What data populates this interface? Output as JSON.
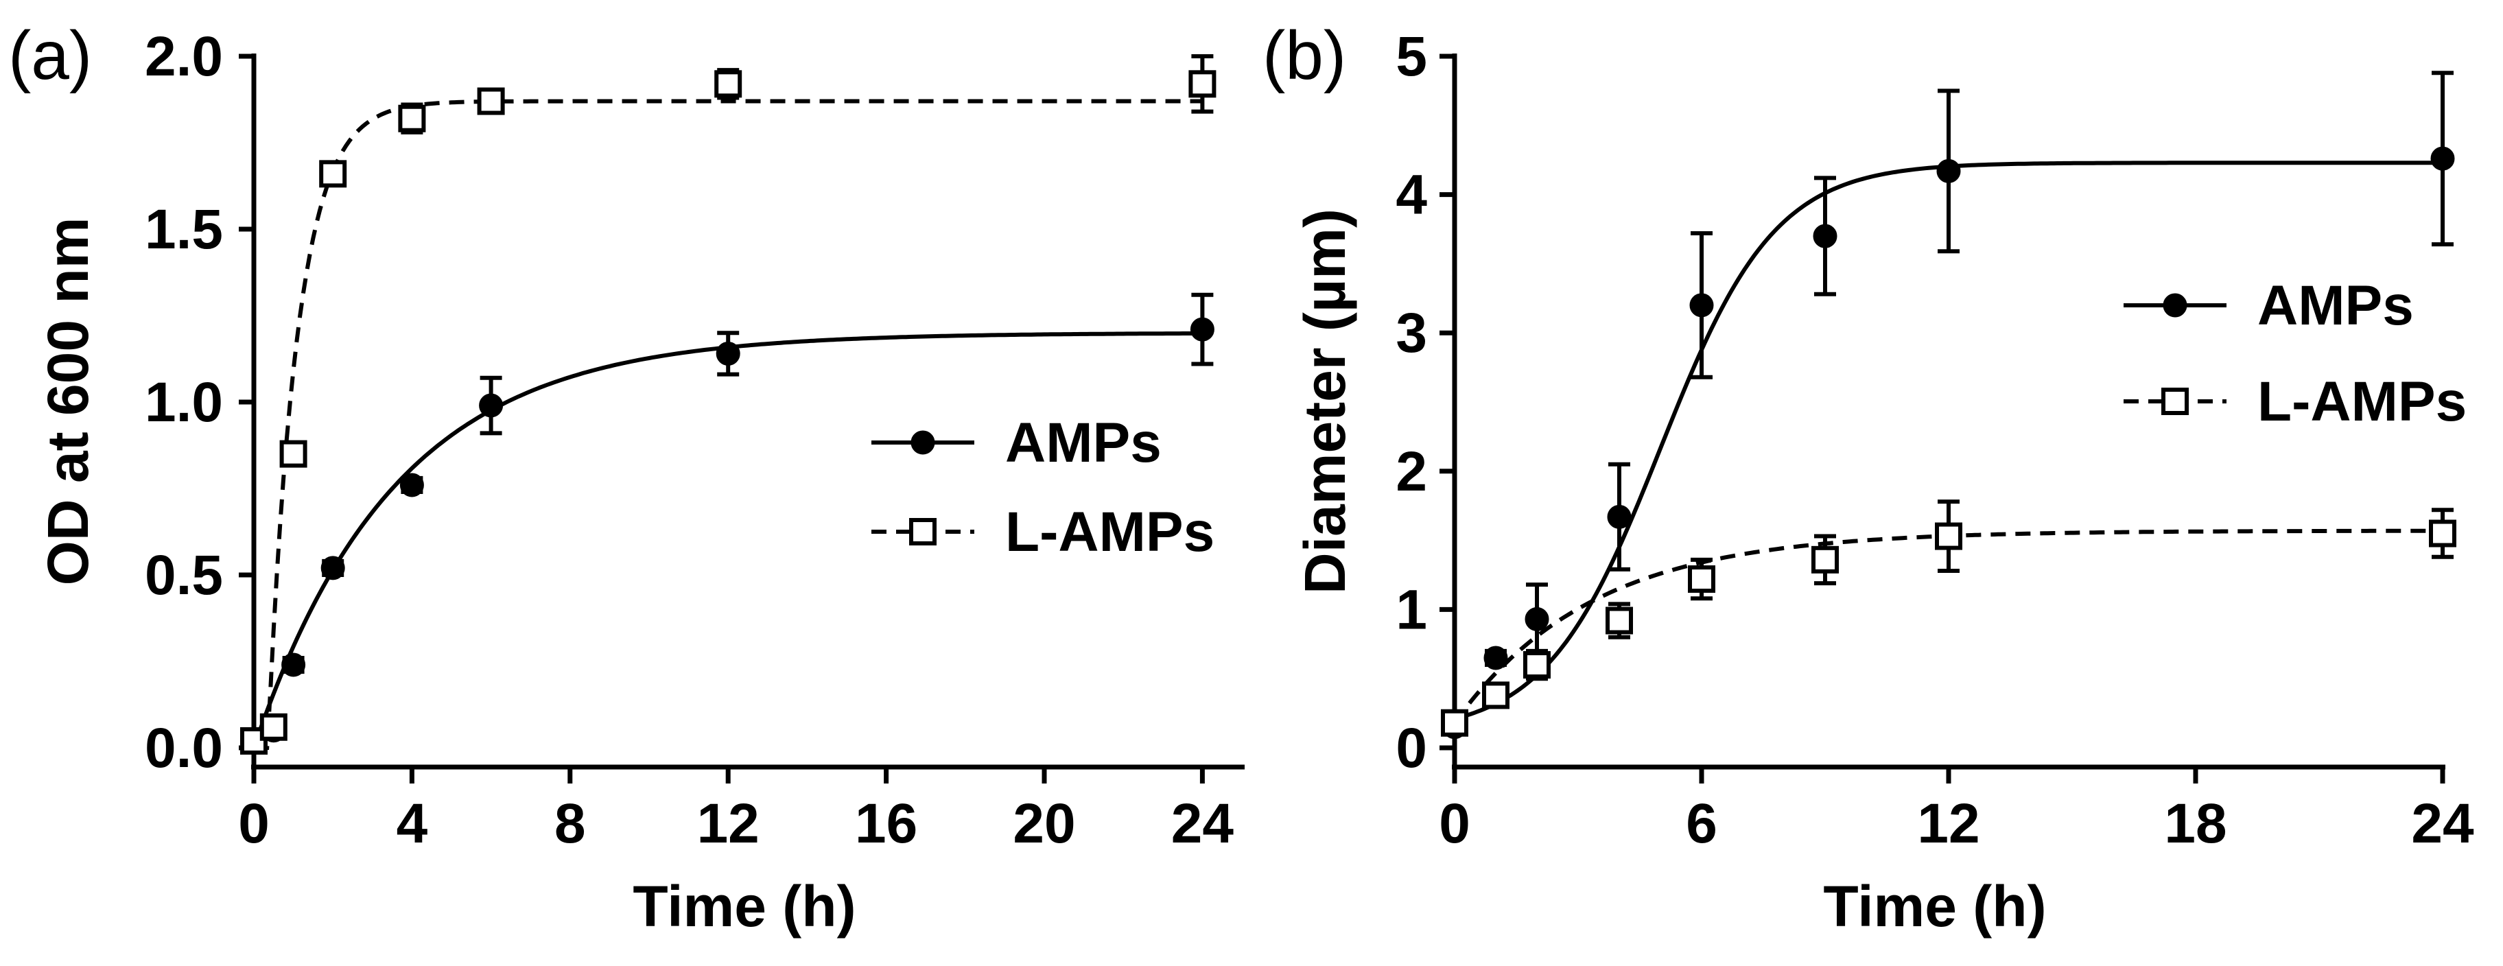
{
  "chart_data": [
    {
      "type": "scatter",
      "panel_label": "(a)",
      "xlabel": "Time (h)",
      "ylabel": "OD at 600 nm",
      "xlim": [
        0,
        25
      ],
      "ylim": [
        0,
        2.0
      ],
      "xticks": [
        0,
        4,
        8,
        12,
        16,
        20,
        24
      ],
      "yticks": [
        0.0,
        0.5,
        1.0,
        1.5,
        2.0
      ],
      "ytick_labels": [
        "0.0",
        "0.5",
        "1.0",
        "1.5",
        "2.0"
      ],
      "legend_position": "center-right",
      "series": [
        {
          "name": "AMPs",
          "marker": "filled-circle",
          "line": "solid",
          "x": [
            0,
            0.5,
            1,
            2,
            4,
            6,
            12,
            24
          ],
          "y": [
            0.02,
            0.05,
            0.24,
            0.52,
            0.76,
            0.99,
            1.14,
            1.21
          ],
          "err": [
            0.01,
            0.01,
            0.02,
            0.02,
            0.02,
            0.08,
            0.06,
            0.1
          ],
          "fit": {
            "model": "saturating-exponential",
            "ymax": 1.2,
            "k": 0.28,
            "x0": 0
          }
        },
        {
          "name": "L-AMPs",
          "marker": "open-square",
          "line": "dashed",
          "x": [
            0,
            0.5,
            1,
            2,
            4,
            6,
            12,
            24
          ],
          "y": [
            0.02,
            0.06,
            0.85,
            1.66,
            1.82,
            1.87,
            1.92,
            1.92
          ],
          "err": [
            0.01,
            0.02,
            0.03,
            0.03,
            0.04,
            0.02,
            0.04,
            0.08
          ],
          "fit": {
            "model": "saturating-exponential",
            "ymax": 1.87,
            "k": 1.35,
            "x0": 0.35
          }
        }
      ]
    },
    {
      "type": "scatter",
      "panel_label": "(b)",
      "xlabel": "Time (h)",
      "ylabel": "Diameter (µm)",
      "xlim": [
        0,
        24
      ],
      "ylim": [
        0,
        5
      ],
      "xticks": [
        0,
        6,
        12,
        18,
        24
      ],
      "yticks": [
        0,
        1,
        2,
        3,
        4,
        5
      ],
      "ytick_labels": [
        "0",
        "1",
        "2",
        "3",
        "4",
        "5"
      ],
      "legend_position": "center-right",
      "series": [
        {
          "name": "AMPs",
          "marker": "filled-circle",
          "line": "solid",
          "x": [
            0,
            1,
            2,
            4,
            6,
            9,
            12,
            24
          ],
          "y": [
            0.15,
            0.65,
            0.93,
            1.67,
            3.2,
            3.7,
            4.17,
            4.26
          ],
          "err": [
            0.05,
            0.05,
            0.25,
            0.38,
            0.52,
            0.42,
            0.58,
            0.62
          ],
          "fit": {
            "model": "logistic",
            "ymin": 0.1,
            "ymax": 4.23,
            "xmid": 5.0,
            "slope": 0.72
          }
        },
        {
          "name": "L-AMPs",
          "marker": "open-square",
          "line": "dashed",
          "x": [
            0,
            1,
            2,
            4,
            6,
            9,
            12,
            24
          ],
          "y": [
            0.18,
            0.38,
            0.6,
            0.92,
            1.22,
            1.36,
            1.53,
            1.55
          ],
          "err": [
            0.04,
            0.05,
            0.1,
            0.12,
            0.14,
            0.17,
            0.25,
            0.17
          ],
          "fit": {
            "model": "saturating-exponential",
            "ymin": 0.18,
            "ymax": 1.57,
            "k": 0.3,
            "x0": 0
          }
        }
      ]
    }
  ]
}
